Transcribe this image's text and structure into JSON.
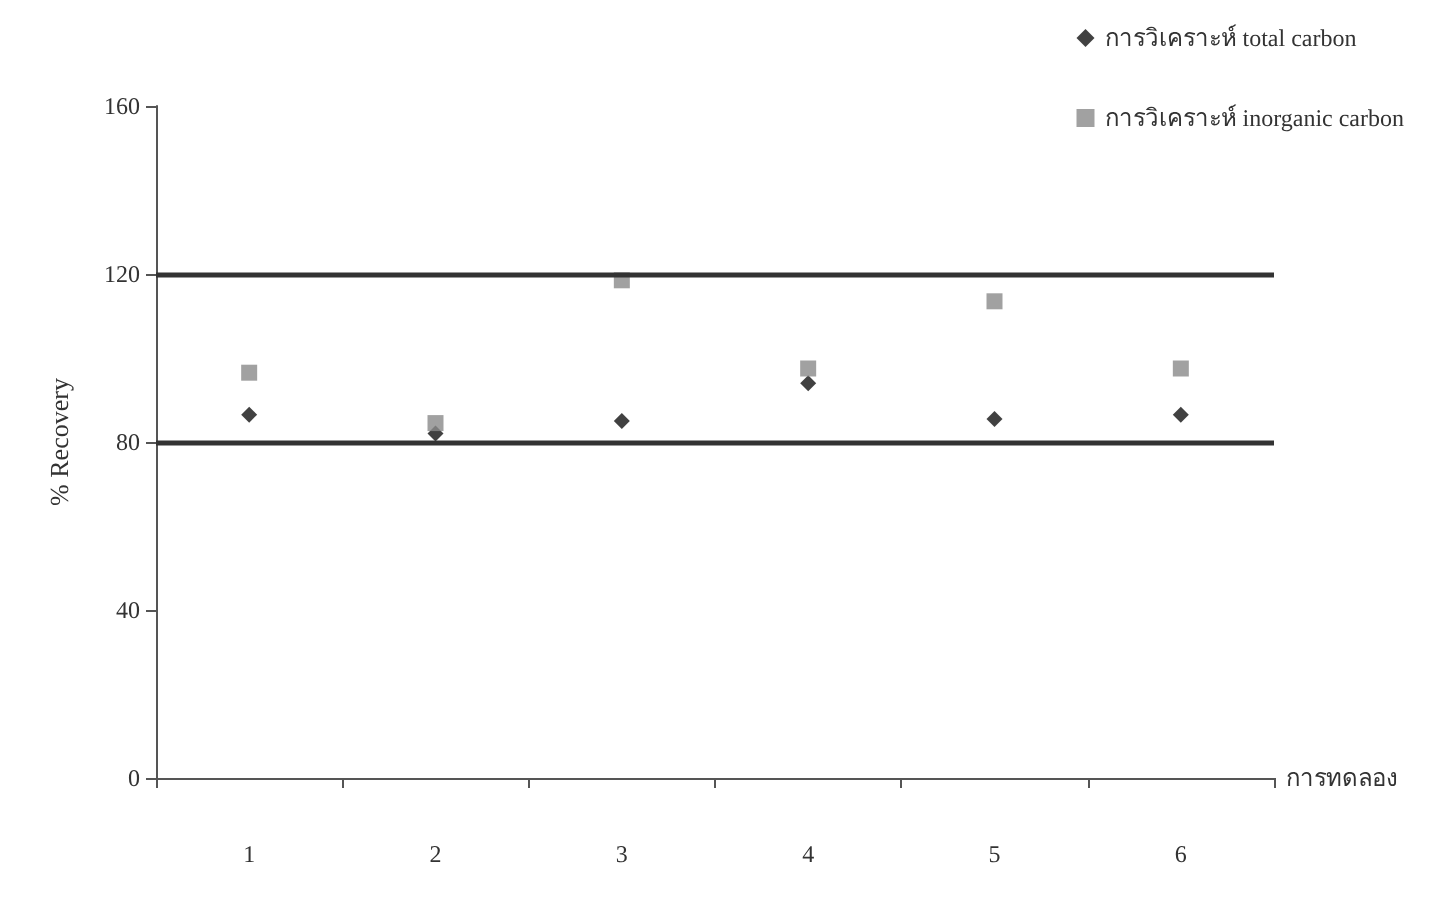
{
  "chart_data": {
    "type": "scatter",
    "xlabel": "การทดลอง",
    "ylabel": "% Recovery",
    "categories": [
      "1",
      "2",
      "3",
      "4",
      "5",
      "6"
    ],
    "ylim": [
      0,
      160
    ],
    "yticks": [
      0,
      40,
      80,
      120,
      160
    ],
    "grid": false,
    "legend": "top right",
    "series": [
      {
        "name": "การวิเคราะห์ total carbon",
        "color": "#111111",
        "marker": "diamond",
        "values": [
          86.5,
          82,
          85,
          94,
          85.5,
          86.5
        ]
      },
      {
        "name": "การวิเคราะห์ inorganic carbon",
        "color": "#8a8a8a",
        "marker": "square",
        "values": [
          96.5,
          84.5,
          118.5,
          97.5,
          113.5,
          97.5
        ]
      }
    ],
    "ref_lines": [
      {
        "axis": "y",
        "value": 80,
        "color": "#333333",
        "line_style": "solid"
      },
      {
        "axis": "y",
        "value": 120,
        "color": "#333333",
        "line_style": "solid"
      }
    ]
  }
}
